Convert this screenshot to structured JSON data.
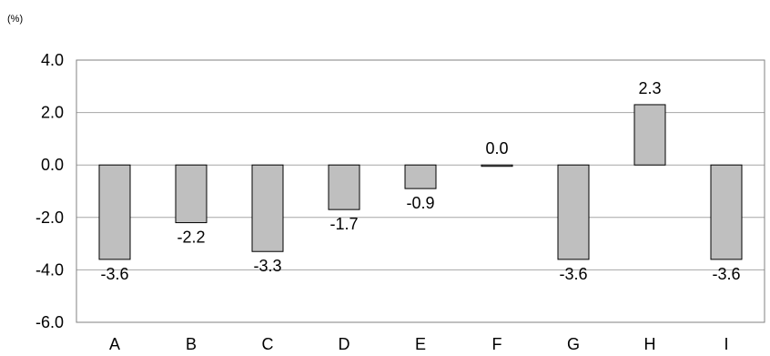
{
  "chart_data": {
    "type": "bar",
    "unit_label": "(%)",
    "title": "",
    "xlabel": "",
    "ylabel": "",
    "categories": [
      "A",
      "B",
      "C",
      "D",
      "E",
      "F",
      "G",
      "H",
      "I"
    ],
    "values": [
      -3.6,
      -2.2,
      -3.3,
      -1.7,
      -0.9,
      0.0,
      -3.6,
      2.3,
      -3.6
    ],
    "value_labels": [
      "-3.6",
      "-2.2",
      "-3.3",
      "-1.7",
      "-0.9",
      "0.0",
      "-3.6",
      "2.3",
      "-3.6"
    ],
    "y_ticks": [
      4.0,
      2.0,
      0.0,
      -2.0,
      -4.0,
      -6.0
    ],
    "y_tick_labels": [
      "4.0",
      "2.0",
      "0.0",
      "-2.0",
      "-4.0",
      "-6.0"
    ],
    "ylim": [
      -6.0,
      4.0
    ],
    "grid": true,
    "legend": "none",
    "bar_color": "#bfbfbf",
    "grid_color": "#a6a6a6"
  }
}
